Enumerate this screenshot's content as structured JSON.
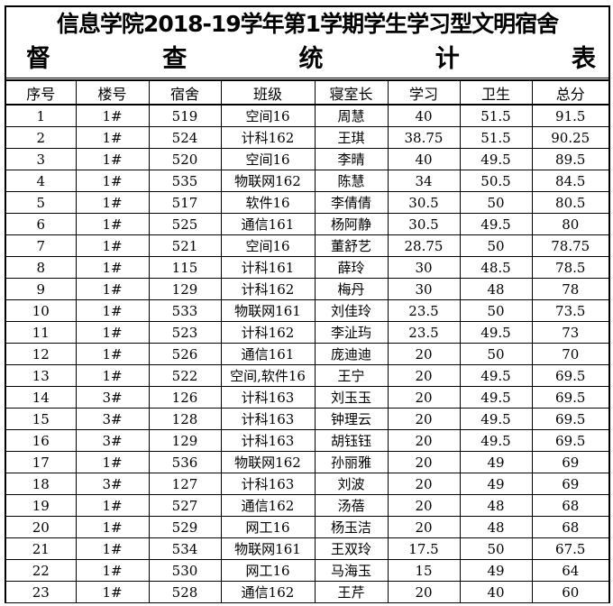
{
  "title": "信息学院2018-19学年第1学期学生学习型文明宿舍",
  "subtitle_chars": [
    "督",
    "查",
    "统",
    "计",
    "表"
  ],
  "headers": [
    "序号",
    "楼号",
    "宿舍",
    "班级",
    "寝室长",
    "学习",
    "卫生",
    "总分"
  ],
  "rows": [
    [
      "1",
      "1#",
      "519",
      "空间16",
      "周慧",
      "40",
      "51.5",
      "91.5"
    ],
    [
      "2",
      "1#",
      "524",
      "计科162",
      "王琪",
      "38.75",
      "51.5",
      "90.25"
    ],
    [
      "3",
      "1#",
      "520",
      "空间16",
      "李晴",
      "40",
      "49.5",
      "89.5"
    ],
    [
      "4",
      "1#",
      "535",
      "物联网162",
      "陈慧",
      "34",
      "50.5",
      "84.5"
    ],
    [
      "5",
      "1#",
      "517",
      "软件16",
      "李倩倩",
      "30.5",
      "50",
      "80.5"
    ],
    [
      "6",
      "1#",
      "525",
      "通信161",
      "杨阿静",
      "30.5",
      "49.5",
      "80"
    ],
    [
      "7",
      "1#",
      "521",
      "空间16",
      "董舒艺",
      "28.75",
      "50",
      "78.75"
    ],
    [
      "8",
      "1#",
      "115",
      "计科161",
      "薛玲",
      "30",
      "48.5",
      "78.5"
    ],
    [
      "9",
      "1#",
      "129",
      "计科162",
      "梅丹",
      "30",
      "48",
      "78"
    ],
    [
      "10",
      "1#",
      "533",
      "物联网161",
      "刘佳玲",
      "23.5",
      "50",
      "73.5"
    ],
    [
      "11",
      "1#",
      "523",
      "计科162",
      "李沚玙",
      "23.5",
      "49.5",
      "73"
    ],
    [
      "12",
      "1#",
      "526",
      "通信161",
      "庞迪迪",
      "20",
      "50",
      "70"
    ],
    [
      "13",
      "1#",
      "522",
      "空间,软件16",
      "王宁",
      "20",
      "49.5",
      "69.5"
    ],
    [
      "14",
      "3#",
      "126",
      "计科163",
      "刘玉玉",
      "20",
      "49.5",
      "69.5"
    ],
    [
      "15",
      "3#",
      "128",
      "计科163",
      "钟理云",
      "20",
      "49.5",
      "69.5"
    ],
    [
      "16",
      "3#",
      "129",
      "计科163",
      "胡钰钰",
      "20",
      "49.5",
      "69.5"
    ],
    [
      "17",
      "1#",
      "536",
      "物联网162",
      "孙丽雅",
      "20",
      "49",
      "69"
    ],
    [
      "18",
      "3#",
      "127",
      "计科163",
      "刘波",
      "20",
      "49",
      "69"
    ],
    [
      "19",
      "1#",
      "527",
      "通信162",
      "汤蓓",
      "20",
      "48",
      "68"
    ],
    [
      "20",
      "1#",
      "529",
      "网工16",
      "杨玉洁",
      "20",
      "48",
      "68"
    ],
    [
      "21",
      "1#",
      "534",
      "物联网161",
      "王双玲",
      "17.5",
      "50",
      "67.5"
    ],
    [
      "22",
      "1#",
      "530",
      "网工16",
      "马海玉",
      "15",
      "49",
      "64"
    ],
    [
      "23",
      "1#",
      "528",
      "通信162",
      "王芹",
      "20",
      "40",
      "60"
    ]
  ]
}
